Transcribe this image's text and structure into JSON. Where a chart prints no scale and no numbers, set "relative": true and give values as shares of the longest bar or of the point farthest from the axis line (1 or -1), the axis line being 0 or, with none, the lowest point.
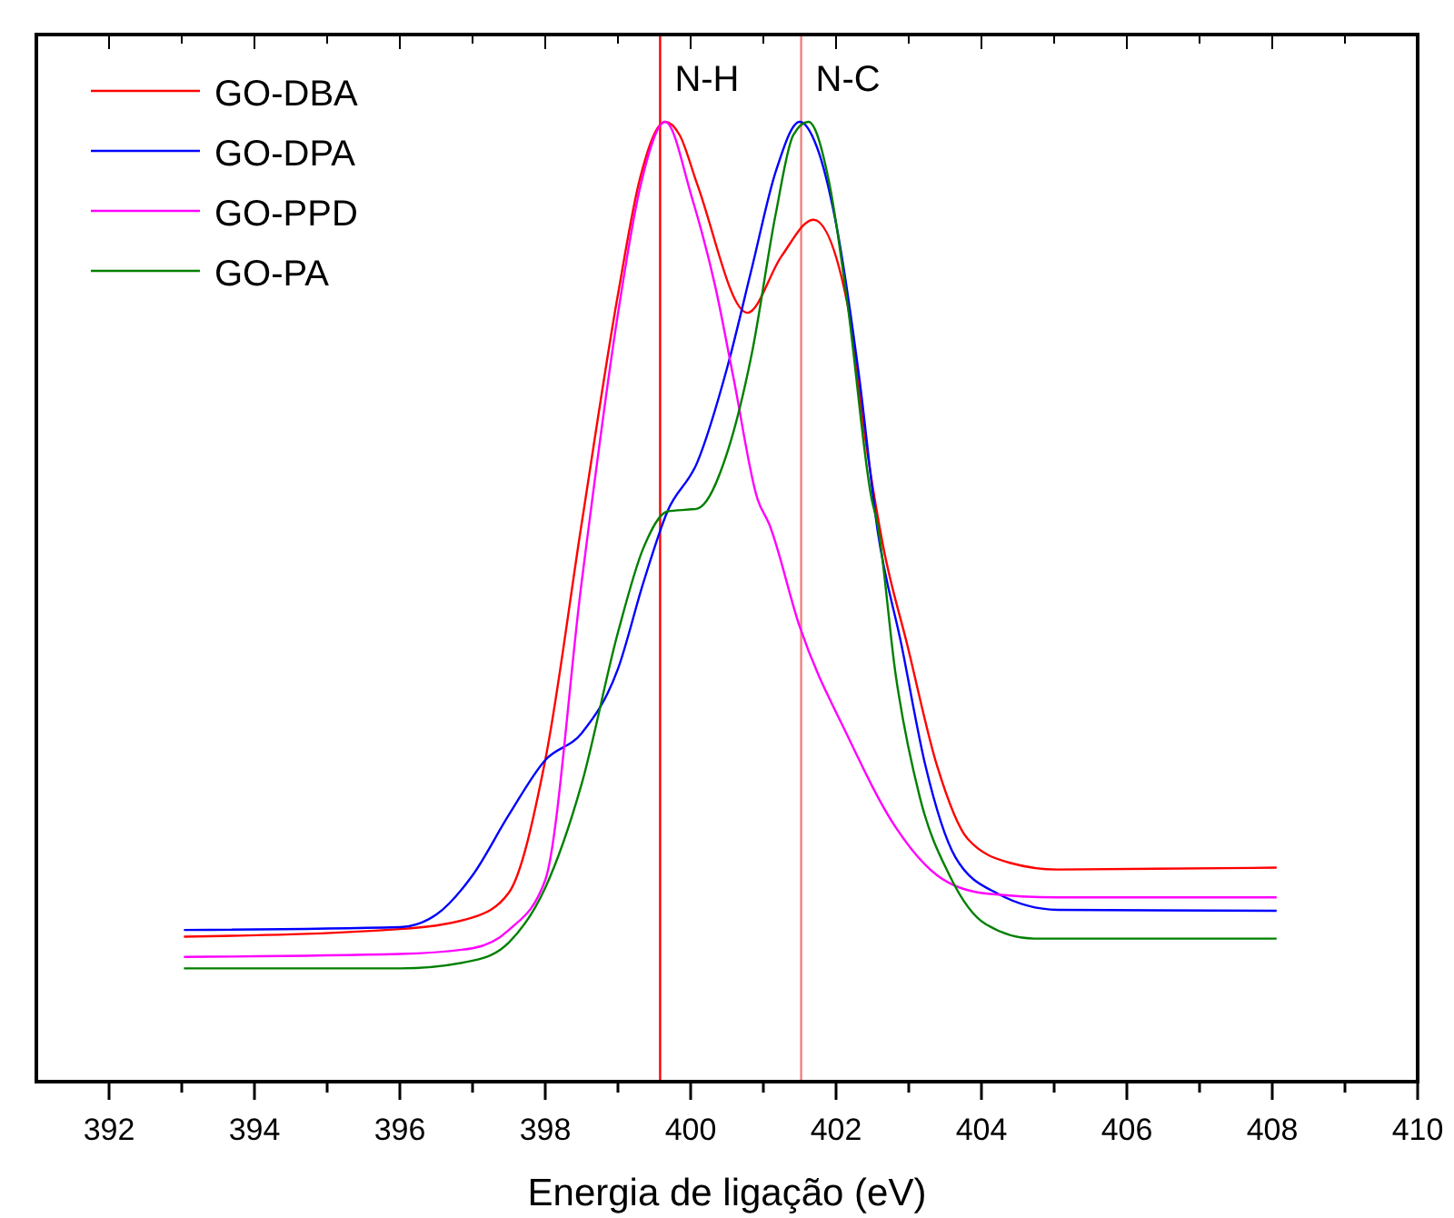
{
  "chart_data": {
    "type": "line",
    "relative": true,
    "xlabel": "Energia de ligação (eV)",
    "xlim": [
      391,
      410
    ],
    "xticks": [
      392,
      {
        "value": 393,
        "label": null
      },
      394,
      {
        "value": 395,
        "label": null
      },
      396,
      {
        "value": 397,
        "label": null
      },
      398,
      {
        "value": 399,
        "label": null
      },
      400,
      {
        "value": 401,
        "label": null
      },
      402,
      {
        "value": 403,
        "label": null
      },
      404,
      {
        "value": 405,
        "label": null
      },
      406,
      {
        "value": 407,
        "label": null
      },
      408,
      {
        "value": 409,
        "label": null
      },
      410
    ],
    "legend": "top left",
    "grid": false,
    "ref_lines": [
      {
        "axis": "x",
        "value": 399.58,
        "label": "N-H",
        "color": "#ff0000"
      },
      {
        "axis": "x",
        "value": 401.52,
        "label": "N-C",
        "color": "#f08080"
      }
    ],
    "series": [
      {
        "name": "GO-DBA",
        "color": "#ff0000",
        "x": [
          393.03,
          396,
          397,
          397.5,
          398,
          398.5,
          399,
          399.3,
          399.65,
          399.85,
          400.09,
          400.78,
          401.25,
          401.69,
          402.16,
          402.4,
          402.65,
          402.98,
          403.39,
          403.81,
          404.39,
          405.05,
          408.06
        ],
        "values": [
          0.151,
          0.159,
          0.171,
          0.197,
          0.335,
          0.581,
          0.82,
          0.94,
          1.0,
          0.986,
          0.935,
          0.801,
          0.86,
          0.898,
          0.809,
          0.671,
          0.557,
          0.455,
          0.329,
          0.253,
          0.228,
          0.221,
          0.223
        ]
      },
      {
        "name": "GO-DPA",
        "color": "#0000ff",
        "x": [
          393.03,
          396,
          396.5,
          397,
          397.5,
          398,
          398.5,
          399,
          399.35,
          399.68,
          400.09,
          400.51,
          400.84,
          401.17,
          401.5,
          401.74,
          401.99,
          402.32,
          402.57,
          402.9,
          403.23,
          403.64,
          404.22,
          405.05,
          408.06
        ],
        "values": [
          0.158,
          0.161,
          0.174,
          0.215,
          0.278,
          0.335,
          0.363,
          0.43,
          0.52,
          0.594,
          0.645,
          0.746,
          0.847,
          0.948,
          1.0,
          0.973,
          0.898,
          0.733,
          0.575,
          0.455,
          0.329,
          0.234,
          0.196,
          0.179,
          0.178
        ]
      },
      {
        "name": "GO-PPD",
        "color": "#ff00ff",
        "x": [
          393.03,
          396,
          397,
          397.5,
          398,
          398.5,
          399,
          399.3,
          399.65,
          400.01,
          400.34,
          400.59,
          400.92,
          401.08,
          401.5,
          402.16,
          402.82,
          403.39,
          404.06,
          405.05,
          408.06
        ],
        "values": [
          0.13,
          0.133,
          0.139,
          0.158,
          0.21,
          0.52,
          0.8,
          0.93,
          1.0,
          0.923,
          0.828,
          0.733,
          0.607,
          0.581,
          0.474,
          0.36,
          0.265,
          0.215,
          0.196,
          0.192,
          0.192
        ]
      },
      {
        "name": "GO-PA",
        "color": "#008000",
        "x": [
          393.03,
          396,
          397,
          397.5,
          398,
          398.5,
          399,
          399.35,
          399.68,
          400.09,
          400.51,
          400.84,
          401.17,
          401.41,
          401.62,
          401.91,
          402.16,
          402.49,
          402.57,
          402.82,
          403.15,
          403.56,
          404.06,
          404.72,
          408.06
        ],
        "values": [
          0.118,
          0.118,
          0.126,
          0.145,
          0.202,
          0.31,
          0.468,
          0.556,
          0.594,
          0.597,
          0.657,
          0.758,
          0.904,
          0.986,
          1.0,
          0.935,
          0.809,
          0.607,
          0.581,
          0.424,
          0.297,
          0.215,
          0.164,
          0.149,
          0.149
        ]
      }
    ]
  }
}
